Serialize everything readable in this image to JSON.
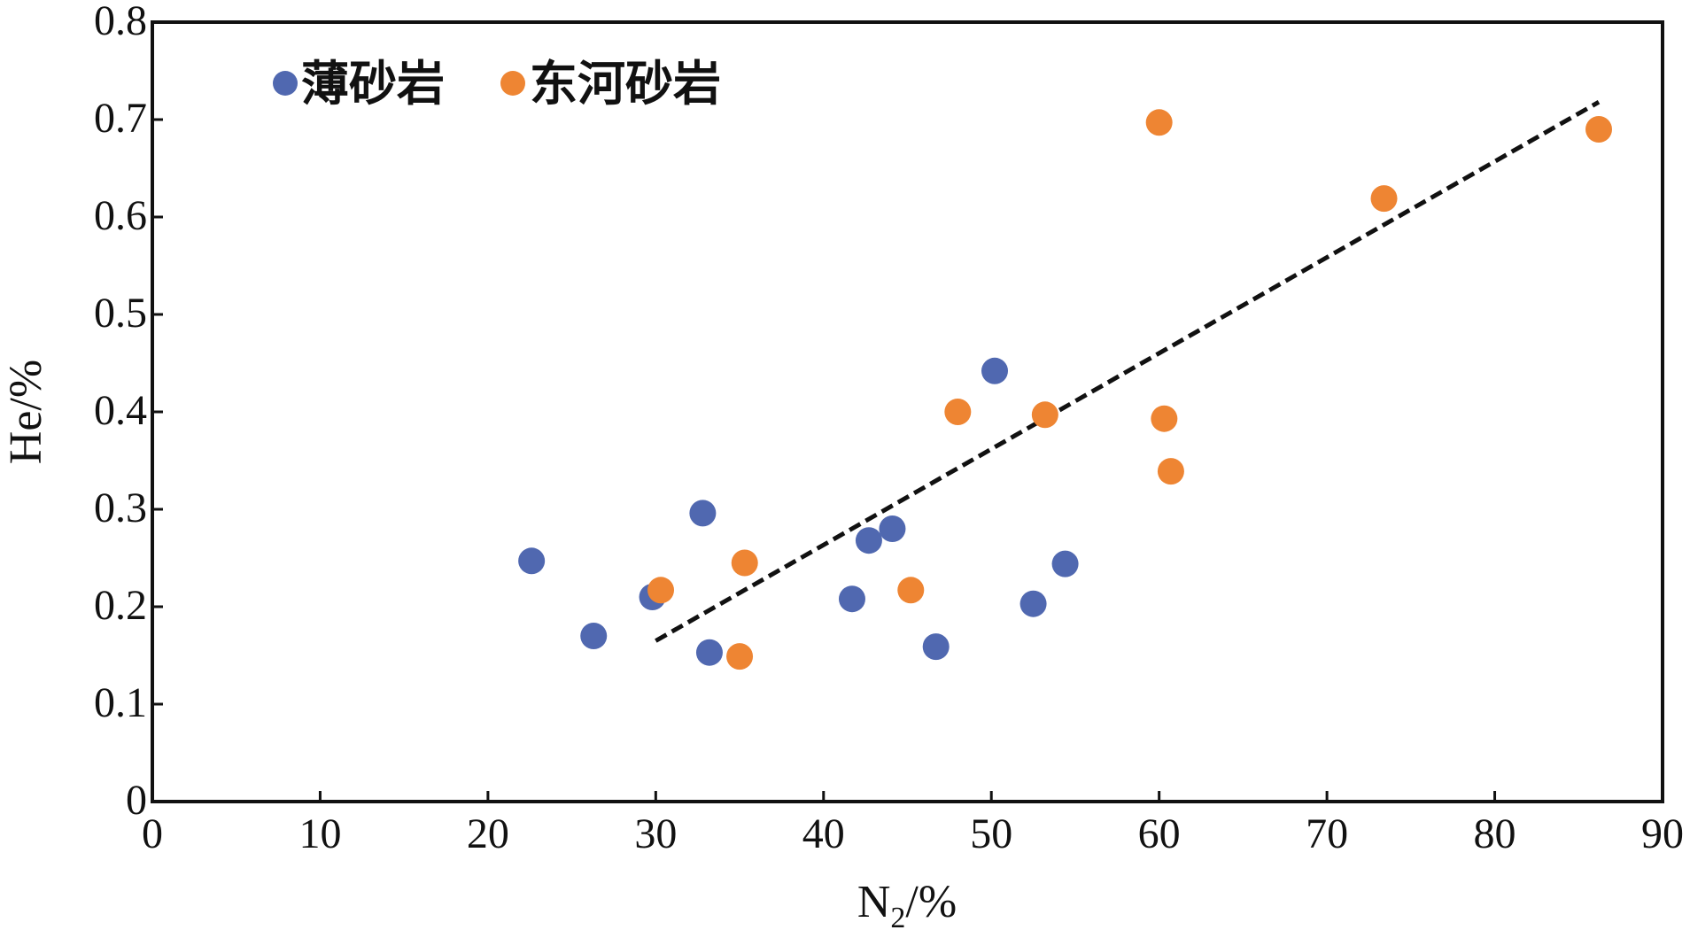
{
  "chart_data": {
    "type": "scatter",
    "xlabel": "N",
    "xlabel_sub": "2",
    "xlabel_unit": "/%",
    "ylabel": "He/%",
    "xlim": [
      0,
      90
    ],
    "ylim": [
      0,
      0.8
    ],
    "x_ticks": [
      "0",
      "10",
      "20",
      "30",
      "40",
      "50",
      "60",
      "70",
      "80",
      "90"
    ],
    "y_ticks": [
      "0",
      "0.1",
      "0.2",
      "0.3",
      "0.4",
      "0.5",
      "0.6",
      "0.7",
      "0.8"
    ],
    "legend_position": "top-left",
    "series": [
      {
        "name": "薄砂岩",
        "color": "#5068b0",
        "points": [
          {
            "x": 22.6,
            "y": 0.247
          },
          {
            "x": 26.3,
            "y": 0.17
          },
          {
            "x": 29.8,
            "y": 0.21
          },
          {
            "x": 32.8,
            "y": 0.296
          },
          {
            "x": 33.2,
            "y": 0.153
          },
          {
            "x": 41.7,
            "y": 0.208
          },
          {
            "x": 42.7,
            "y": 0.268
          },
          {
            "x": 44.1,
            "y": 0.28
          },
          {
            "x": 46.7,
            "y": 0.159
          },
          {
            "x": 50.2,
            "y": 0.442
          },
          {
            "x": 52.5,
            "y": 0.203
          },
          {
            "x": 54.4,
            "y": 0.244
          }
        ]
      },
      {
        "name": "东河砂岩",
        "color": "#ee8533",
        "points": [
          {
            "x": 30.3,
            "y": 0.217
          },
          {
            "x": 35.0,
            "y": 0.149
          },
          {
            "x": 35.3,
            "y": 0.245
          },
          {
            "x": 45.2,
            "y": 0.217
          },
          {
            "x": 48.0,
            "y": 0.4
          },
          {
            "x": 53.2,
            "y": 0.397
          },
          {
            "x": 60.0,
            "y": 0.697
          },
          {
            "x": 60.3,
            "y": 0.393
          },
          {
            "x": 60.7,
            "y": 0.339
          },
          {
            "x": 73.4,
            "y": 0.619
          },
          {
            "x": 86.2,
            "y": 0.69
          }
        ]
      }
    ],
    "trendline": {
      "style": "dashed",
      "color": "#111111",
      "points": [
        {
          "x": 30.0,
          "y": 0.165
        },
        {
          "x": 86.2,
          "y": 0.718
        }
      ]
    }
  }
}
